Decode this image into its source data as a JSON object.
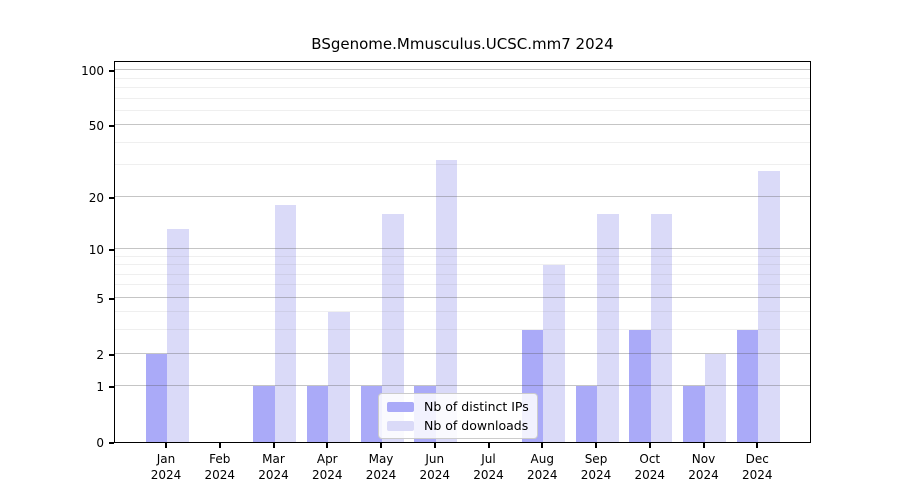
{
  "figure": {
    "title": "BSgenome.Mmusculus.UCSC.mm7 2024"
  },
  "colors": {
    "distinct_ips_bar": "#aaaaf8",
    "downloads_bar": "#dadaf8",
    "axis": "#000000",
    "grid_major": "#c6c6c6",
    "grid_minor": "#e9e9e9"
  },
  "legend": {
    "items": [
      {
        "label": "Nb of distinct IPs",
        "color": "#aaaaf8"
      },
      {
        "label": "Nb of downloads",
        "color": "#dadaf8"
      }
    ]
  },
  "chart_data": {
    "type": "bar",
    "title": "BSgenome.Mmusculus.UCSC.mm7 2024",
    "categories": [
      "Jan\n2024",
      "Feb\n2024",
      "Mar\n2024",
      "Apr\n2024",
      "May\n2024",
      "Jun\n2024",
      "Jul\n2024",
      "Aug\n2024",
      "Sep\n2024",
      "Oct\n2024",
      "Nov\n2024",
      "Dec\n2024"
    ],
    "series": [
      {
        "name": "Nb of distinct IPs",
        "color": "#aaaaf8",
        "values": [
          2,
          0,
          1,
          1,
          1,
          1,
          0,
          3,
          1,
          3,
          1,
          3
        ]
      },
      {
        "name": "Nb of downloads",
        "color": "#dadaf8",
        "values": [
          13,
          0,
          18,
          4,
          16,
          32,
          0,
          8,
          16,
          16,
          2,
          28
        ]
      }
    ],
    "xlabel": "",
    "ylabel": "",
    "yscale": "log1p",
    "yticks": [
      0,
      1,
      2,
      5,
      10,
      20,
      50,
      100
    ],
    "yminor_gridlines": [
      3,
      4,
      6,
      7,
      8,
      9,
      30,
      40,
      60,
      70,
      80,
      90
    ],
    "ylim": [
      0,
      113
    ],
    "grid": true,
    "legend_position": "lower center inside"
  }
}
